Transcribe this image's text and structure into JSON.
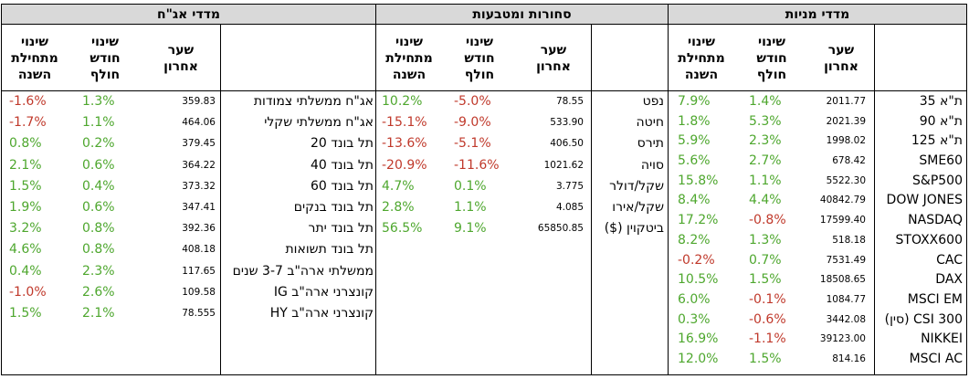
{
  "colors": {
    "positive": "#4ea72e",
    "negative": "#c0392b",
    "header_bg": "#d9d9d9"
  },
  "headers": {
    "ytd": "שינוי\nמתחילת\nהשנה",
    "month": "שינוי\nחודש\nחולף",
    "last": "שער\nאחרון"
  },
  "bonds": {
    "title": "מדדי אג\"ח",
    "rows": [
      {
        "ytd": "-1.6%",
        "month": "1.3%",
        "last": "359.83",
        "name": "אג\"ח ממשלתי צמודות"
      },
      {
        "ytd": "-1.7%",
        "month": "1.1%",
        "last": "464.06",
        "name": "אג\"ח ממשלתי שקלי"
      },
      {
        "ytd": "0.8%",
        "month": "0.2%",
        "last": "379.45",
        "name": "תל בונד 20"
      },
      {
        "ytd": "2.1%",
        "month": "0.6%",
        "last": "364.22",
        "name": "תל בונד 40"
      },
      {
        "ytd": "1.5%",
        "month": "0.4%",
        "last": "373.32",
        "name": "תל בונד 60"
      },
      {
        "ytd": "1.9%",
        "month": "0.6%",
        "last": "347.41",
        "name": "תל בונד בנקים"
      },
      {
        "ytd": "3.2%",
        "month": "0.8%",
        "last": "392.36",
        "name": "תל בונד יתר"
      },
      {
        "ytd": "4.6%",
        "month": "0.8%",
        "last": "408.18",
        "name": "תל בונד תשואות"
      },
      {
        "ytd": "0.4%",
        "month": "2.3%",
        "last": "117.65",
        "name": "ממשלתי ארה\"ב 3-7 שנים"
      },
      {
        "ytd": "-1.0%",
        "month": "2.6%",
        "last": "109.58",
        "name": "קונצרני ארה\"ב IG"
      },
      {
        "ytd": "1.5%",
        "month": "2.1%",
        "last": "78.555",
        "name": "קונצרני ארה\"ב HY"
      }
    ]
  },
  "commodities": {
    "title": "סחורות ומטבעות",
    "rows": [
      {
        "ytd": "10.2%",
        "month": "-5.0%",
        "last": "78.55",
        "name": "נפט"
      },
      {
        "ytd": "-15.1%",
        "month": "-9.0%",
        "last": "533.90",
        "name": "חיטה"
      },
      {
        "ytd": "-13.6%",
        "month": "-5.1%",
        "last": "406.50",
        "name": "תירס"
      },
      {
        "ytd": "-20.9%",
        "month": "-11.6%",
        "last": "1021.62",
        "name": "סויה"
      },
      {
        "ytd": "4.7%",
        "month": "0.1%",
        "last": "3.775",
        "name": "שקל/דולר"
      },
      {
        "ytd": "2.8%",
        "month": "1.1%",
        "last": "4.085",
        "name": "שקל/אירו"
      },
      {
        "ytd": "56.5%",
        "month": "9.1%",
        "last": "65850.85",
        "name": "ביטקוין ($)"
      }
    ]
  },
  "stocks": {
    "title": "מדדי מניות",
    "rows": [
      {
        "ytd": "7.9%",
        "month": "1.4%",
        "last": "2011.77",
        "name": "ת\"א 35"
      },
      {
        "ytd": "1.8%",
        "month": "5.3%",
        "last": "2021.39",
        "name": "ת\"א 90"
      },
      {
        "ytd": "5.9%",
        "month": "2.3%",
        "last": "1998.02",
        "name": "ת\"א 125"
      },
      {
        "ytd": "5.6%",
        "month": "2.7%",
        "last": "678.42",
        "name": "SME60"
      },
      {
        "ytd": "15.8%",
        "month": "1.1%",
        "last": "5522.30",
        "name": "S&P500"
      },
      {
        "ytd": "8.4%",
        "month": "4.4%",
        "last": "40842.79",
        "name": "DOW JONES"
      },
      {
        "ytd": "17.2%",
        "month": "-0.8%",
        "last": "17599.40",
        "name": "NASDAQ"
      },
      {
        "ytd": "8.2%",
        "month": "1.3%",
        "last": "518.18",
        "name": "STOXX600"
      },
      {
        "ytd": "-0.2%",
        "month": "0.7%",
        "last": "7531.49",
        "name": "CAC"
      },
      {
        "ytd": "10.5%",
        "month": "1.5%",
        "last": "18508.65",
        "name": "DAX"
      },
      {
        "ytd": "6.0%",
        "month": "-0.1%",
        "last": "1084.77",
        "name": "MSCI EM"
      },
      {
        "ytd": "0.3%",
        "month": "-0.6%",
        "last": "3442.08",
        "name": "CSI 300 (סין)"
      },
      {
        "ytd": "16.9%",
        "month": "-1.1%",
        "last": "39123.00",
        "name": "NIKKEI"
      },
      {
        "ytd": "12.0%",
        "month": "1.5%",
        "last": "814.16",
        "name": "MSCI AC"
      }
    ]
  }
}
